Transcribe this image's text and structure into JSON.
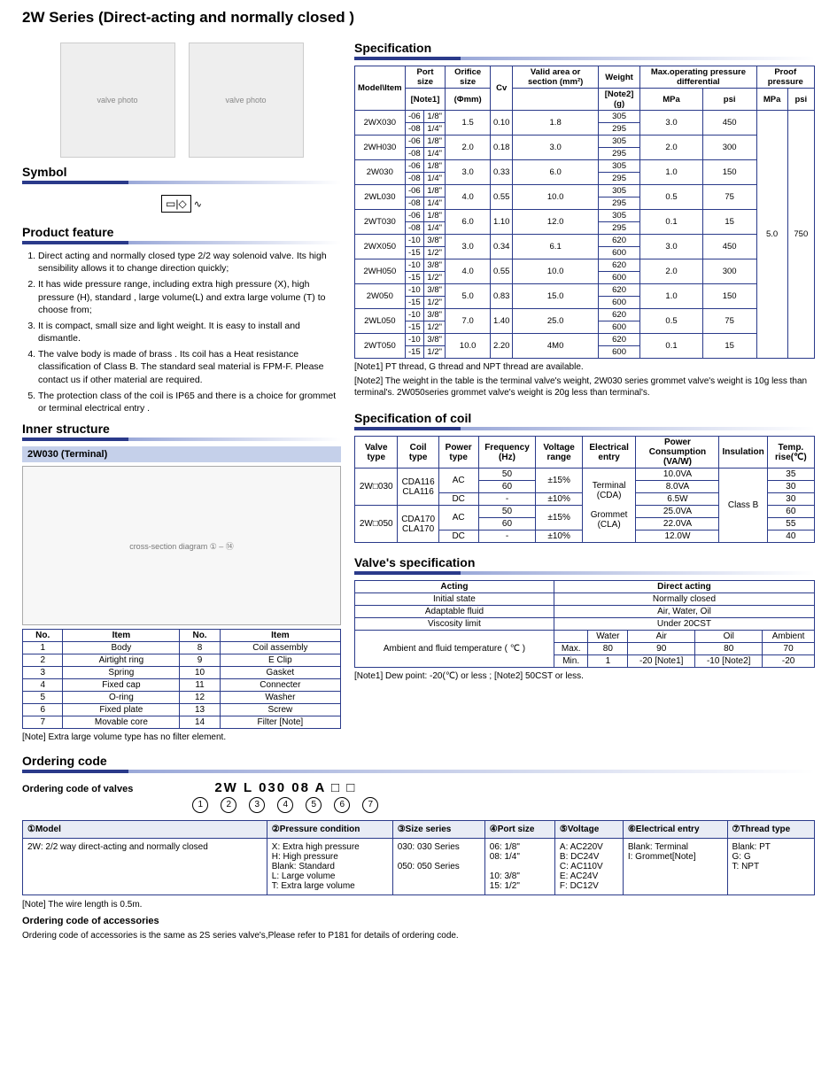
{
  "title": "2W Series (Direct-acting and normally closed )",
  "sections": {
    "symbol": "Symbol",
    "feature": "Product feature",
    "inner": "Inner structure",
    "spec": "Specification",
    "coil": "Specification of coil",
    "vspec": "Valve's specification",
    "order": "Ordering code"
  },
  "struct_label": "2W030 (Terminal)",
  "features": [
    "Direct acting and normally closed type 2/2 way solenoid valve. Its high sensibility allows it to change direction quickly;",
    "It has wide pressure range, including extra high pressure (X), high pressure (H), standard , large volume(L) and extra large volume (T) to choose from;",
    "It is compact, small size and light weight. It is easy to install and dismantle.",
    "The valve body is made of brass . Its coil has a Heat resistance classification of Class B. The standard seal material is FPM-F. Please contact us if other material are required.",
    "The protection class of the coil is IP65 and there is a choice for grommet or terminal electrical entry ."
  ],
  "parts_headers": [
    "No.",
    "Item",
    "No.",
    "Item"
  ],
  "parts_rows": [
    [
      "1",
      "Body",
      "8",
      "Coil assembly"
    ],
    [
      "2",
      "Airtight ring",
      "9",
      "E Clip"
    ],
    [
      "3",
      "Spring",
      "10",
      "Gasket"
    ],
    [
      "4",
      "Fixed cap",
      "11",
      "Connecter"
    ],
    [
      "5",
      "O-ring",
      "12",
      "Washer"
    ],
    [
      "6",
      "Fixed plate",
      "13",
      "Screw"
    ],
    [
      "7",
      "Movable core",
      "14",
      "Filter [Note]"
    ]
  ],
  "parts_note": "[Note] Extra large volume type has no filter element.",
  "spec_headers": {
    "model": "Model\\Item",
    "port": "Port size",
    "orifice": "Orifice size",
    "cv": "Cv",
    "area": "Valid area or section (mm²)",
    "wt": "Weight",
    "maxp": "Max.operating pressure differential",
    "proof": "Proof pressure",
    "note1": "[Note1]",
    "phi": "(Φmm)",
    "note2": "[Note2](g)",
    "mpa": "MPa",
    "psi": "psi"
  },
  "spec_rows": [
    {
      "m": "2WX030",
      "s": [
        [
          "-06",
          "1/8\""
        ],
        [
          "-08",
          "1/4\""
        ]
      ],
      "o": "1.5",
      "cv": "0.10",
      "a": "1.8",
      "w": [
        "305",
        "295"
      ],
      "mp": "3.0",
      "ps": "450"
    },
    {
      "m": "2WH030",
      "s": [
        [
          "-06",
          "1/8\""
        ],
        [
          "-08",
          "1/4\""
        ]
      ],
      "o": "2.0",
      "cv": "0.18",
      "a": "3.0",
      "w": [
        "305",
        "295"
      ],
      "mp": "2.0",
      "ps": "300"
    },
    {
      "m": "2W030",
      "s": [
        [
          "-06",
          "1/8\""
        ],
        [
          "-08",
          "1/4\""
        ]
      ],
      "o": "3.0",
      "cv": "0.33",
      "a": "6.0",
      "w": [
        "305",
        "295"
      ],
      "mp": "1.0",
      "ps": "150"
    },
    {
      "m": "2WL030",
      "s": [
        [
          "-06",
          "1/8\""
        ],
        [
          "-08",
          "1/4\""
        ]
      ],
      "o": "4.0",
      "cv": "0.55",
      "a": "10.0",
      "w": [
        "305",
        "295"
      ],
      "mp": "0.5",
      "ps": "75"
    },
    {
      "m": "2WT030",
      "s": [
        [
          "-06",
          "1/8\""
        ],
        [
          "-08",
          "1/4\""
        ]
      ],
      "o": "6.0",
      "cv": "1.10",
      "a": "12.0",
      "w": [
        "305",
        "295"
      ],
      "mp": "0.1",
      "ps": "15"
    },
    {
      "m": "2WX050",
      "s": [
        [
          "-10",
          "3/8\""
        ],
        [
          "-15",
          "1/2\""
        ]
      ],
      "o": "3.0",
      "cv": "0.34",
      "a": "6.1",
      "w": [
        "620",
        "600"
      ],
      "mp": "3.0",
      "ps": "450"
    },
    {
      "m": "2WH050",
      "s": [
        [
          "-10",
          "3/8\""
        ],
        [
          "-15",
          "1/2\""
        ]
      ],
      "o": "4.0",
      "cv": "0.55",
      "a": "10.0",
      "w": [
        "620",
        "600"
      ],
      "mp": "2.0",
      "ps": "300"
    },
    {
      "m": "2W050",
      "s": [
        [
          "-10",
          "3/8\""
        ],
        [
          "-15",
          "1/2\""
        ]
      ],
      "o": "5.0",
      "cv": "0.83",
      "a": "15.0",
      "w": [
        "620",
        "600"
      ],
      "mp": "1.0",
      "ps": "150"
    },
    {
      "m": "2WL050",
      "s": [
        [
          "-10",
          "3/8\""
        ],
        [
          "-15",
          "1/2\""
        ]
      ],
      "o": "7.0",
      "cv": "1.40",
      "a": "25.0",
      "w": [
        "620",
        "600"
      ],
      "mp": "0.5",
      "ps": "75"
    },
    {
      "m": "2WT050",
      "s": [
        [
          "-10",
          "3/8\""
        ],
        [
          "-15",
          "1/2\""
        ]
      ],
      "o": "10.0",
      "cv": "2.20",
      "a": "4M0",
      "w": [
        "620",
        "600"
      ],
      "mp": "0.1",
      "ps": "15"
    }
  ],
  "proof": {
    "mpa": "5.0",
    "psi": "750"
  },
  "spec_note1": "[Note1] PT thread, G thread and NPT thread are available.",
  "spec_note2": "[Note2] The weight in the table is the terminal valve's weight, 2W030 series grommet valve's weight is 10g less than terminal's. 2W050series grommet valve's weight is 20g less than terminal's.",
  "coil_headers": [
    "Valve type",
    "Coil type",
    "Power type",
    "Frequency (Hz)",
    "Voltage range",
    "Electrical entry",
    "Power Consumption (VA/W)",
    "Insulation",
    "Temp. rise(℃)"
  ],
  "coil_rows": [
    {
      "vt": "2W□030",
      "ct": "CDA116\nCLA116",
      "pt": "AC",
      "f": [
        "50",
        "60"
      ],
      "vr": "±15%",
      "ee": "Terminal (CDA)",
      "pc": [
        "10.0VA",
        "8.0VA"
      ],
      "tr": [
        "35",
        "30"
      ]
    },
    {
      "vt": "",
      "ct": "",
      "pt": "DC",
      "f": [
        "-"
      ],
      "vr": "±10%",
      "ee": "",
      "pc": [
        "6.5W"
      ],
      "tr": [
        "30"
      ]
    },
    {
      "vt": "2W□050",
      "ct": "CDA170\nCLA170",
      "pt": "AC",
      "f": [
        "50",
        "60"
      ],
      "vr": "±15%",
      "ee": "Grommet (CLA)",
      "pc": [
        "25.0VA",
        "22.0VA"
      ],
      "tr": [
        "60",
        "55"
      ]
    },
    {
      "vt": "",
      "ct": "",
      "pt": "DC",
      "f": [
        "-"
      ],
      "vr": "±10%",
      "ee": "",
      "pc": [
        "12.0W"
      ],
      "tr": [
        "40"
      ]
    }
  ],
  "coil_ins": "Class B",
  "vspec": {
    "h1": "Acting",
    "h2": "Direct acting",
    "r1": [
      "Initial state",
      "Normally closed"
    ],
    "r2": [
      "Adaptable fluid",
      "Air, Water, Oil"
    ],
    "r3": [
      "Viscosity limit",
      "Under 20CST"
    ],
    "r4l": "Ambient and fluid temperature ( ℃ )",
    "cols": [
      "",
      "Water",
      "Air",
      "Oil",
      "Ambient"
    ],
    "max": [
      "Max.",
      "80",
      "90",
      "80",
      "70"
    ],
    "min": [
      "Min.",
      "1",
      "-20 [Note1]",
      "-10 [Note2]",
      "-20"
    ]
  },
  "vspec_note": "[Note1] Dew point: -20(℃) or less ;       [Note2] 50CST or less.",
  "order": {
    "sub1": "Ordering code of valves",
    "code": "2W  L  030 08  A  □  □",
    "nums": [
      "1",
      "2",
      "3",
      "4",
      "5",
      "6",
      "7"
    ],
    "heads": [
      "①Model",
      "②Pressure condition",
      "③Size series",
      "④Port size",
      "⑤Voltage",
      "⑥Electrical entry",
      "⑦Thread type"
    ],
    "cells": [
      "2W: 2/2 way direct-acting and normally closed",
      "X: Extra high pressure\nH: High pressure\nBlank: Standard\nL: Large volume\nT: Extra large volume",
      "030: 030 Series\n\n050: 050 Series",
      "06: 1/8\"\n08: 1/4\"\n\n10: 3/8\"\n15: 1/2\"",
      "A: AC220V\nB: DC24V\nC: AC110V\nE: AC24V\nF: DC12V",
      "Blank: Terminal\nI: Grommet[Note]",
      "Blank: PT\nG: G\nT: NPT"
    ],
    "note": "[Note] The wire length is 0.5m.",
    "sub2": "Ordering code of accessories",
    "sub2txt": "Ordering code of accessories is the same as 2S series valve's,Please refer to P181  for details  of ordering code."
  },
  "colors": {
    "accent": "#2a3a8a"
  }
}
